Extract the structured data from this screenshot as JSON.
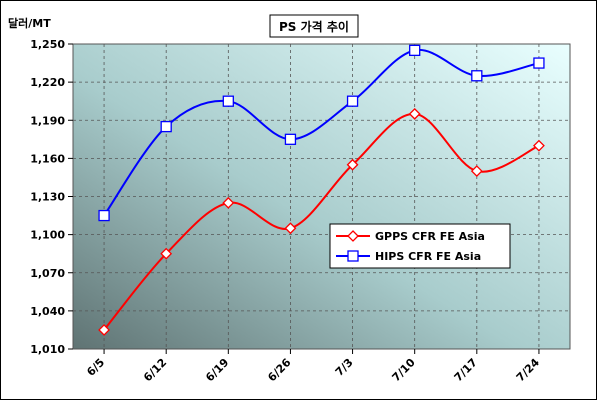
{
  "chart_data": {
    "type": "line",
    "title": "PS 가격 추이",
    "ylabel": "달러/MT",
    "xlabel": "",
    "categories": [
      "6/5",
      "6/12",
      "6/19",
      "6/26",
      "7/3",
      "7/10",
      "7/17",
      "7/24"
    ],
    "ylim": [
      1010,
      1250
    ],
    "yticks": [
      "1,010",
      "1,040",
      "1,070",
      "1,100",
      "1,130",
      "1,160",
      "1,190",
      "1,220",
      "1,250"
    ],
    "grid": true,
    "legend_position": "center-right",
    "series": [
      {
        "name": "GPPS CFR FE Asia",
        "color": "#ff0000",
        "marker": "diamond",
        "values": [
          1025,
          1085,
          1125,
          1105,
          1155,
          1195,
          1150,
          1170
        ]
      },
      {
        "name": "HIPS CFR FE Asia",
        "color": "#0000ff",
        "marker": "square",
        "values": [
          1115,
          1185,
          1205,
          1175,
          1205,
          1245,
          1225,
          1235
        ]
      }
    ]
  }
}
